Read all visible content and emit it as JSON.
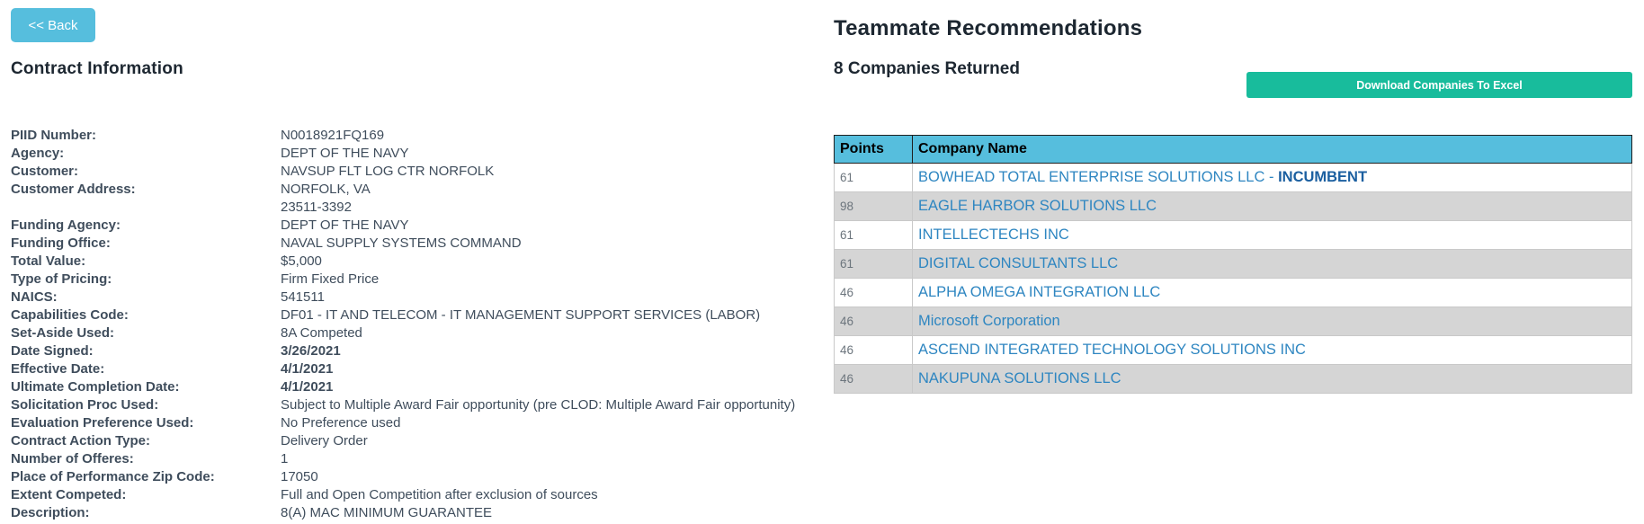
{
  "back_button_label": "<< Back",
  "contract_info": {
    "title": "Contract Information",
    "fields": [
      {
        "label": "PIID Number:",
        "value": "N0018921FQ169"
      },
      {
        "label": "Agency:",
        "value": "DEPT OF THE NAVY"
      },
      {
        "label": "Customer:",
        "value": "NAVSUP FLT LOG CTR NORFOLK"
      },
      {
        "label": "Customer Address:",
        "value": "NORFOLK, VA",
        "line2": "23511-3392"
      },
      {
        "label": "Funding Agency:",
        "value": "DEPT OF THE NAVY"
      },
      {
        "label": "Funding Office:",
        "value": "NAVAL SUPPLY SYSTEMS COMMAND"
      },
      {
        "label": "Total Value:",
        "value": "$5,000"
      },
      {
        "label": "Type of Pricing:",
        "value": "Firm Fixed Price"
      },
      {
        "label": "NAICS:",
        "value": "541511"
      },
      {
        "label": "Capabilities Code:",
        "value": "DF01 - IT AND TELECOM - IT MANAGEMENT SUPPORT SERVICES (LABOR)"
      },
      {
        "label": "Set-Aside Used:",
        "value": "8A Competed"
      },
      {
        "label": "Date Signed:",
        "value": "3/26/2021",
        "bold": true
      },
      {
        "label": "Effective Date:",
        "value": "4/1/2021",
        "bold": true
      },
      {
        "label": "Ultimate Completion Date:",
        "value": "4/1/2021",
        "bold": true
      },
      {
        "label": "Solicitation Proc Used:",
        "value": "Subject to Multiple Award Fair opportunity (pre CLOD: Multiple Award Fair opportunity)"
      },
      {
        "label": "Evaluation Preference Used:",
        "value": "No Preference used"
      },
      {
        "label": "Contract Action Type:",
        "value": "Delivery Order"
      },
      {
        "label": "Number of Offeres:",
        "value": "1"
      },
      {
        "label": "Place of Performance Zip Code:",
        "value": "17050"
      },
      {
        "label": "Extent Competed:",
        "value": "Full and Open Competition after exclusion of sources"
      },
      {
        "label": "Description:",
        "value": "8(A) MAC MINIMUM GUARANTEE"
      }
    ]
  },
  "recommendations": {
    "title": "Teammate Recommendations",
    "count_text": "8 Companies Returned",
    "download_button_label": "Download Companies To Excel",
    "table": {
      "columns": [
        "Points",
        "Company Name"
      ],
      "incumbent_separator": " - ",
      "rows": [
        {
          "points": "61",
          "company": "BOWHEAD TOTAL ENTERPRISE SOLUTIONS LLC",
          "incumbent": "INCUMBENT"
        },
        {
          "points": "98",
          "company": "EAGLE HARBOR SOLUTIONS LLC"
        },
        {
          "points": "61",
          "company": "INTELLECTECHS INC"
        },
        {
          "points": "61",
          "company": "DIGITAL CONSULTANTS LLC"
        },
        {
          "points": "46",
          "company": "ALPHA OMEGA INTEGRATION LLC"
        },
        {
          "points": "46",
          "company": "Microsoft Corporation"
        },
        {
          "points": "46",
          "company": "ASCEND INTEGRATED TECHNOLOGY SOLUTIONS INC"
        },
        {
          "points": "46",
          "company": "NAKUPUNA SOLUTIONS LLC"
        }
      ]
    }
  },
  "colors": {
    "accent_blue": "#56bedd",
    "download_green": "#18bc9c",
    "link_blue": "#2e86c1",
    "incumbent_blue": "#1b5fa0",
    "row_alt_gray": "#d5d5d5",
    "header_text": "#000000"
  }
}
